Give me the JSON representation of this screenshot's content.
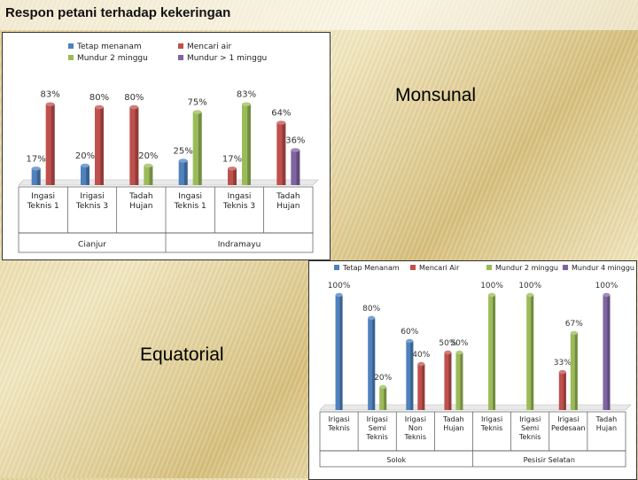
{
  "slide": {
    "title": "Respon petani terhadap kekeringan",
    "caption_a": "Monsunal",
    "caption_b": "Equatorial"
  },
  "colors": {
    "series": [
      "#4f81bd",
      "#c0504d",
      "#9bbb59",
      "#8064a2"
    ]
  },
  "chart_data": [
    {
      "type": "bar",
      "legend_position": "top",
      "value_suffix": "%",
      "ylim": [
        0,
        100
      ],
      "categories": [
        "Ingasi Teknis 1",
        "Irigasi Teknis 3",
        "Tadah Hujan",
        "Ingasi Teknis 1",
        "Ingasi Teknis 3",
        "Tadah Hujan"
      ],
      "groups": [
        {
          "label": "Cianjur",
          "categories": [
            0,
            1,
            2
          ]
        },
        {
          "label": "Indramayu",
          "categories": [
            3,
            4,
            5
          ]
        }
      ],
      "series": [
        {
          "name": "Tetap menanam",
          "values": [
            17,
            20,
            null,
            25,
            null,
            null
          ]
        },
        {
          "name": "Mencari air",
          "values": [
            83,
            80,
            80,
            null,
            17,
            64
          ]
        },
        {
          "name": "Mundur 2 minggu",
          "values": [
            null,
            null,
            20,
            75,
            83,
            null
          ]
        },
        {
          "name": "Mundur > 1 minggu",
          "values": [
            null,
            null,
            null,
            null,
            null,
            36
          ]
        }
      ]
    },
    {
      "type": "bar",
      "legend_position": "top",
      "value_suffix": "%",
      "ylim": [
        0,
        100
      ],
      "categories": [
        "Irigasi Teknis",
        "Irigasi Semi Teknis",
        "Irigasi Non Teknis",
        "Tadah Hujan",
        "Irigasi Teknis",
        "Irigasi Semi Teknis",
        "Irigasi Pedesaan",
        "Tadah Hujan"
      ],
      "groups": [
        {
          "label": "Solok",
          "categories": [
            0,
            1,
            2,
            3
          ]
        },
        {
          "label": "Pesisir Selatan",
          "categories": [
            4,
            5,
            6,
            7
          ]
        }
      ],
      "series": [
        {
          "name": "Tetap Menanam",
          "values": [
            100,
            80,
            60,
            null,
            null,
            null,
            null,
            null
          ]
        },
        {
          "name": "Mencari Air",
          "values": [
            null,
            null,
            40,
            50,
            null,
            null,
            33,
            null
          ]
        },
        {
          "name": "Mundur 2 minggu",
          "values": [
            null,
            20,
            null,
            50,
            100,
            100,
            67,
            null
          ]
        },
        {
          "name": "Mundur 4 minggu",
          "values": [
            null,
            null,
            null,
            null,
            null,
            null,
            null,
            100
          ]
        }
      ]
    }
  ]
}
